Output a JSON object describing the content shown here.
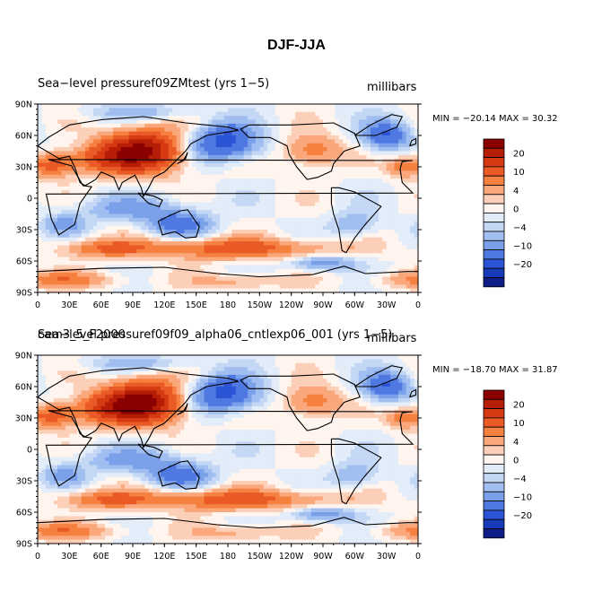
{
  "figure_title": "DJF-JJA",
  "panels": [
    {
      "left_label": "Sea−level pressuref09ZMtest (yrs 1−5)",
      "units": "millibars",
      "minmax": "MIN = −20.14 MAX =  30.32"
    },
    {
      "left_label": "Sea−level pressuref09f09_alpha06_cntlexp06_001 (yrs 1−5)",
      "overlap_label": "cam3_5_F2000",
      "units": "millibars",
      "minmax": "MIN = −18.70 MAX =  31.87"
    }
  ],
  "map": {
    "lat_labels": [
      "90N",
      "60N",
      "30N",
      "0",
      "30S",
      "60S",
      "90S"
    ],
    "lon_labels": [
      "0",
      "30E",
      "60E",
      "90E",
      "120E",
      "150E",
      "180",
      "150W",
      "120W",
      "90W",
      "60W",
      "30W",
      "0"
    ]
  },
  "colorbar": {
    "labels": [
      "20",
      "10",
      "4",
      "0",
      "−4",
      "−10",
      "−20"
    ],
    "colors": [
      "#8b0000",
      "#b51d06",
      "#d53a12",
      "#ea5a26",
      "#f5803f",
      "#faa77b",
      "#fcd0b8",
      "#fff4ee",
      "#e2edf9",
      "#c4d8f5",
      "#a1bef0",
      "#7aa0ea",
      "#4f79e0",
      "#2c55d6",
      "#173bb8",
      "#0d1e86"
    ]
  }
}
